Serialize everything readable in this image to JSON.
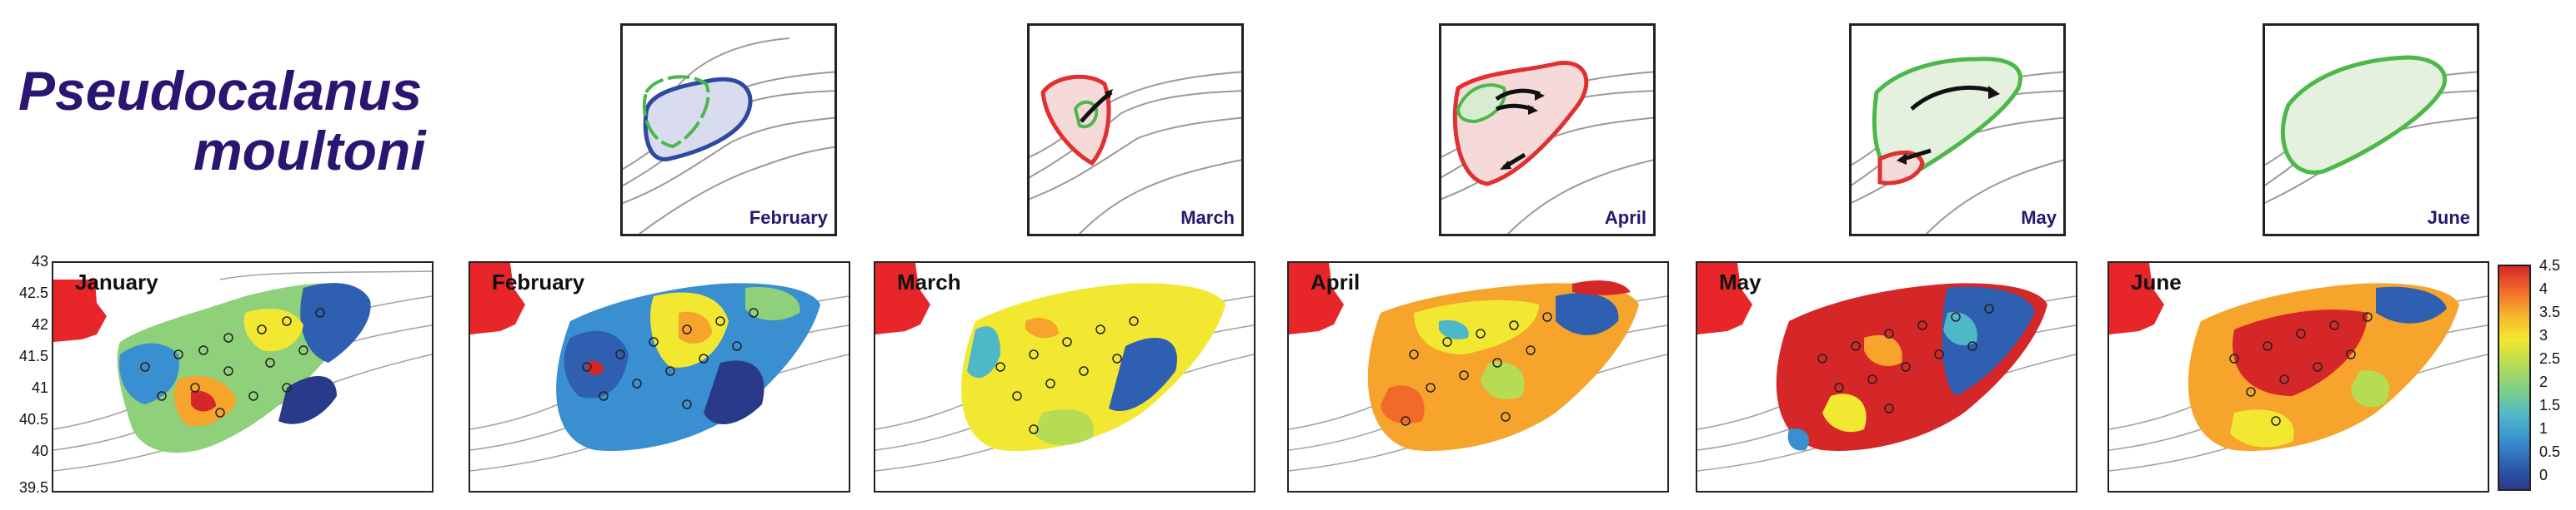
{
  "title": {
    "line1": "Pseudocalanus",
    "line2": "moultoni"
  },
  "insets": [
    {
      "label": "February"
    },
    {
      "label": "March"
    },
    {
      "label": "April"
    },
    {
      "label": "May"
    },
    {
      "label": "June"
    }
  ],
  "maps": [
    {
      "label": "January"
    },
    {
      "label": "February"
    },
    {
      "label": "March"
    },
    {
      "label": "April"
    },
    {
      "label": "May"
    },
    {
      "label": "June"
    }
  ],
  "y_axis_ticks": [
    "43",
    "42.5",
    "42",
    "41.5",
    "41",
    "40.5",
    "40",
    "39.5"
  ],
  "colorbar": {
    "ticks": [
      "4.5",
      "4",
      "3.5",
      "3",
      "2.5",
      "2",
      "1.5",
      "1",
      "0.5",
      "0"
    ],
    "colors": [
      "#d62728",
      "#f26a2a",
      "#f7b52c",
      "#f2e832",
      "#b6dc54",
      "#7ccf8a",
      "#4fb8c8",
      "#3a8fd0",
      "#2e5fb0",
      "#2a3a8a"
    ]
  },
  "colors": {
    "title": "#2a1670",
    "land": "#e8262a",
    "contour_blue": "#2b4aa0",
    "contour_green": "#4cb848",
    "contour_red": "#e03030"
  }
}
